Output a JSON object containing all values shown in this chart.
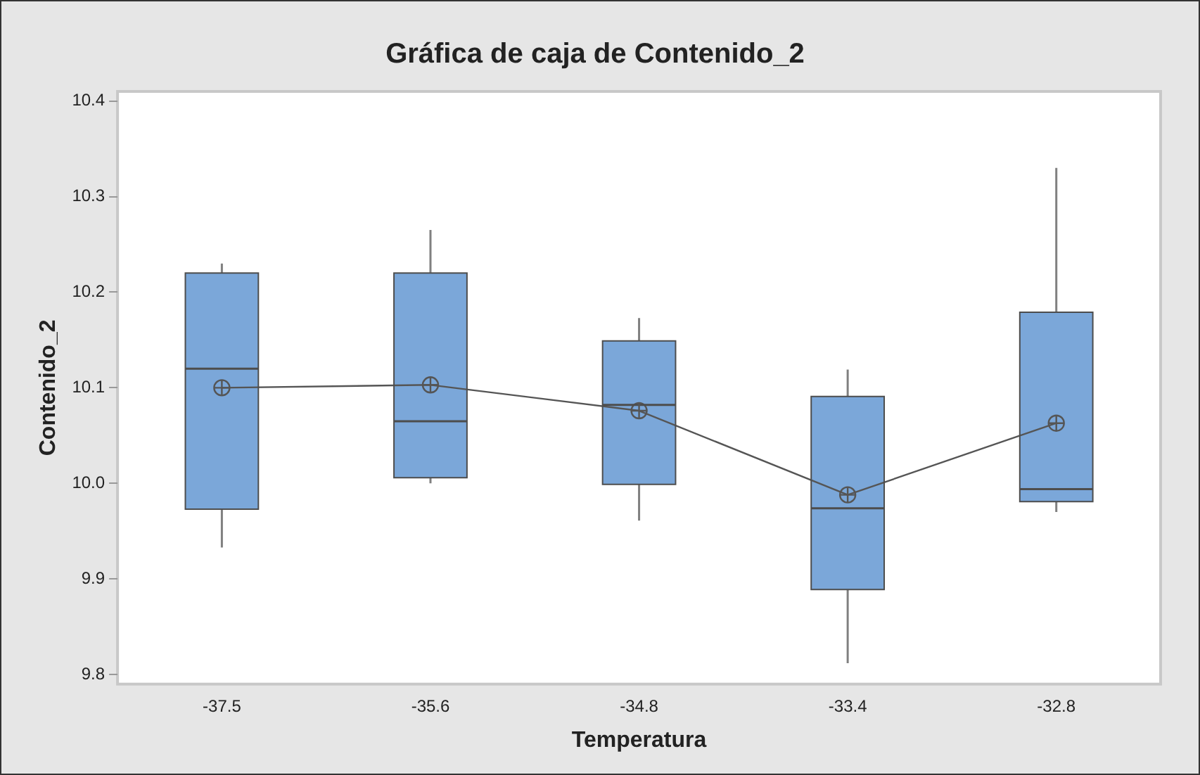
{
  "chart_data": {
    "type": "box",
    "title": "Gráfica de caja de Contenido_2",
    "xlabel": "Temperatura",
    "ylabel": "Contenido_2",
    "categories": [
      "-37.5",
      "-35.6",
      "-34.8",
      "-33.4",
      "-32.8"
    ],
    "ylim": [
      9.79,
      10.41
    ],
    "yticks": [
      9.8,
      9.9,
      {
        "value": 10,
        "label": "10.0"
      },
      10.1,
      10.2,
      10.3,
      10.4
    ],
    "grid": false,
    "legend": false,
    "series": [
      {
        "color": "#7ba7d9",
        "boxes": [
          {
            "low": 9.933,
            "q1": 9.973,
            "median": 10.12,
            "q3": 10.22,
            "high": 10.23
          },
          {
            "low": 10.0,
            "q1": 10.006,
            "median": 10.065,
            "q3": 10.22,
            "high": 10.265
          },
          {
            "low": 9.961,
            "q1": 9.999,
            "median": 10.082,
            "q3": 10.149,
            "high": 10.173
          },
          {
            "low": 9.812,
            "q1": 9.889,
            "median": 9.974,
            "q3": 10.091,
            "high": 10.119
          },
          {
            "low": 9.97,
            "q1": 9.981,
            "median": 9.994,
            "q3": 10.179,
            "high": 10.33
          }
        ]
      },
      {
        "type": "line",
        "color": "#555555",
        "marker": "circle",
        "values": [
          10.1,
          10.103,
          10.076,
          9.988,
          10.063
        ]
      }
    ]
  }
}
